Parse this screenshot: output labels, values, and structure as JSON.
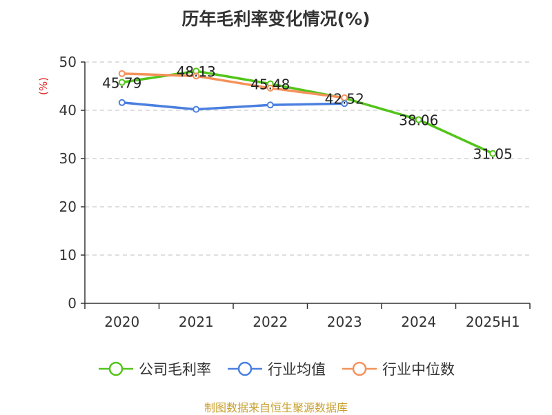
{
  "title": "历年毛利率变化情况(%)",
  "unit_label": "(%)",
  "source": "制图数据来自恒生聚源数据库",
  "chart_data": {
    "type": "line",
    "categories": [
      "2020",
      "2021",
      "2022",
      "2023",
      "2024",
      "2025H1"
    ],
    "ylim": [
      0,
      50
    ],
    "yticks": [
      0,
      10,
      20,
      30,
      40,
      50
    ],
    "grid": true,
    "legend_position": "bottom",
    "series": [
      {
        "name": "公司毛利率",
        "color": "#52c41a",
        "values": [
          45.79,
          48.13,
          45.48,
          42.52,
          38.06,
          31.05
        ],
        "labels": [
          "45.79",
          "48.13",
          "45.48",
          "42.52",
          "38.06",
          "31.05"
        ]
      },
      {
        "name": "行业均值",
        "color": "#4a7fe0",
        "values": [
          41.6,
          40.2,
          41.1,
          41.4,
          null,
          null
        ]
      },
      {
        "name": "行业中位数",
        "color": "#f5915a",
        "values": [
          47.6,
          47.1,
          44.6,
          42.6,
          null,
          null
        ]
      }
    ]
  }
}
